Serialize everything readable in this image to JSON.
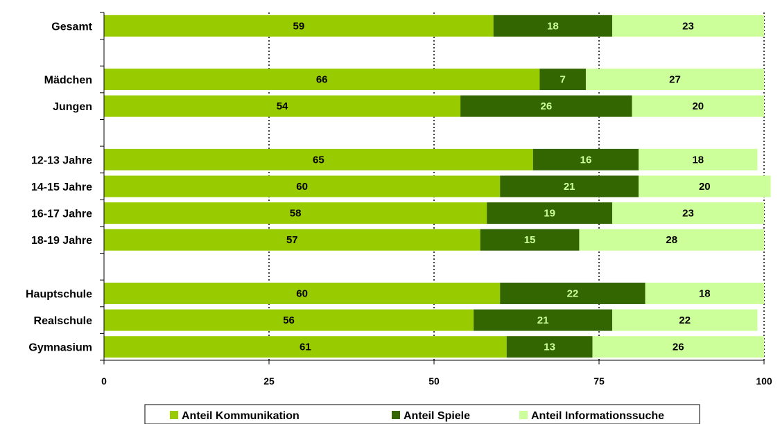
{
  "chart_data": {
    "type": "bar",
    "orientation": "horizontal",
    "stacked": true,
    "categories": [
      "Gesamt",
      "",
      "Mädchen",
      "Jungen",
      "",
      "12-13 Jahre",
      "14-15 Jahre",
      "16-17 Jahre",
      "18-19 Jahre",
      "",
      "Hauptschule",
      "Realschule",
      "Gymnasium"
    ],
    "series": [
      {
        "name": "Anteil Kommunikation",
        "color": "#99cc00",
        "label_color": "#000000",
        "values": [
          59,
          null,
          66,
          54,
          null,
          65,
          60,
          58,
          57,
          null,
          60,
          56,
          61
        ]
      },
      {
        "name": "Anteil Spiele",
        "color": "#336600",
        "label_color": "#ccff99",
        "values": [
          18,
          null,
          7,
          26,
          null,
          16,
          21,
          19,
          15,
          null,
          22,
          21,
          13
        ]
      },
      {
        "name": "Anteil Informationssuche",
        "color": "#ccff99",
        "label_color": "#000000",
        "values": [
          23,
          null,
          27,
          20,
          null,
          18,
          20,
          23,
          28,
          null,
          18,
          22,
          26
        ]
      }
    ],
    "xlim": [
      0,
      100
    ],
    "xticks": [
      "0",
      "25",
      "50",
      "75",
      "100"
    ],
    "grid": "vertical dotted",
    "legend": "bottom",
    "xlabel": "",
    "ylabel": "",
    "title": ""
  }
}
